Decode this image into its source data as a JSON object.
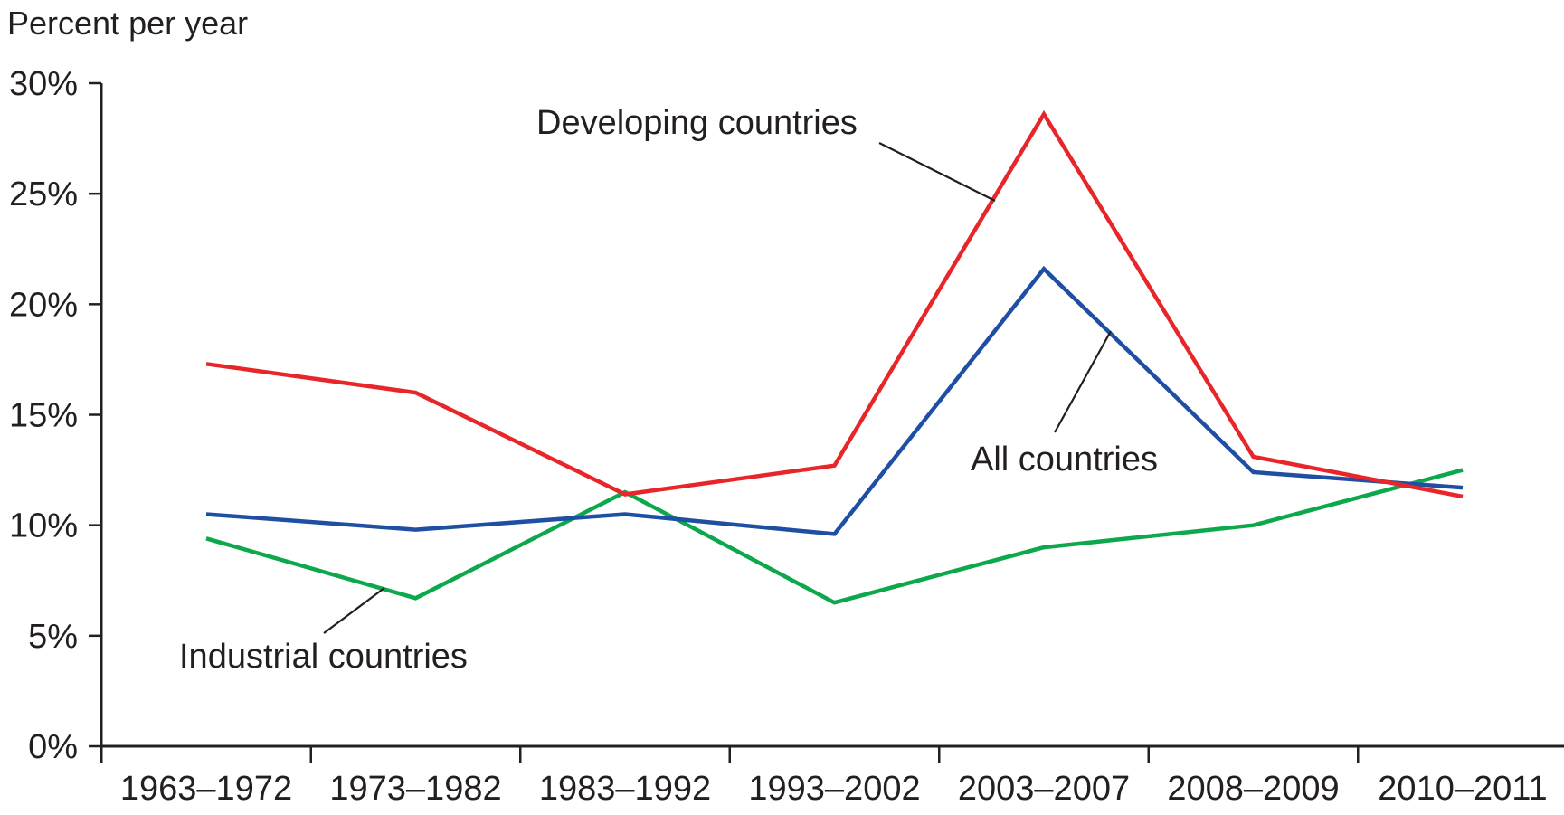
{
  "chart_data": {
    "type": "line",
    "ylabel": "Percent per year",
    "xlabel": "",
    "categories": [
      "1963–1972",
      "1973–1982",
      "1983–1992",
      "1993–2002",
      "2003–2007",
      "2008–2009",
      "2010–2011"
    ],
    "ylim": [
      0,
      30
    ],
    "yticks": [
      0,
      5,
      10,
      15,
      20,
      25,
      30
    ],
    "ytick_labels": [
      "0%",
      "5%",
      "10%",
      "15%",
      "20%",
      "25%",
      "30%"
    ],
    "grid": false,
    "legend": "none (series labeled by annotations with leader lines)",
    "series": [
      {
        "name": "Developing countries",
        "color": "#e8262a",
        "values": [
          17.3,
          16.0,
          11.4,
          12.7,
          28.6,
          13.1,
          11.3
        ]
      },
      {
        "name": "All countries",
        "color": "#1f4fa3",
        "values": [
          10.5,
          9.8,
          10.5,
          9.6,
          21.6,
          12.4,
          11.7
        ]
      },
      {
        "name": "Industrial countries",
        "color": "#0ca84b",
        "values": [
          9.4,
          6.7,
          11.5,
          6.5,
          9.0,
          10.0,
          12.5
        ]
      }
    ],
    "annotations": [
      {
        "text": "Developing countries",
        "series": 0
      },
      {
        "text": "All countries",
        "series": 1
      },
      {
        "text": "Industrial countries",
        "series": 2
      }
    ]
  }
}
